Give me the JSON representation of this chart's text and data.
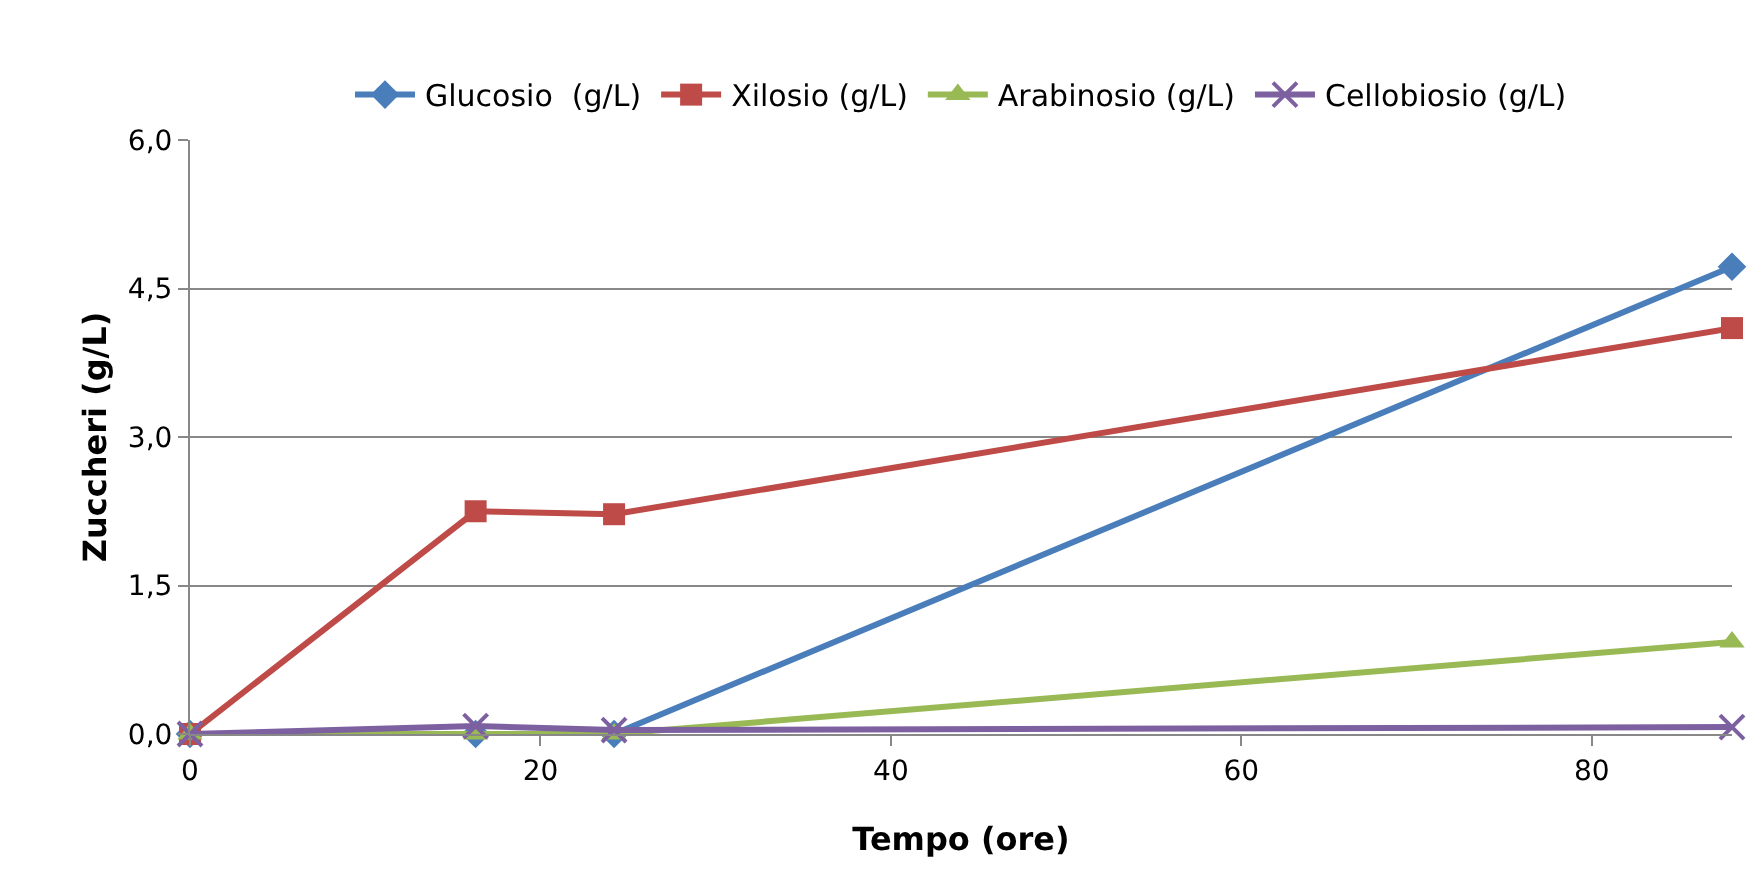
{
  "chart_data": {
    "type": "line",
    "xlabel": "Tempo (ore)",
    "ylabel": "Zuccheri (g/L)",
    "x": [
      0,
      16.3,
      24.2,
      88
    ],
    "series": [
      {
        "name": "Glucosio  (g/L)",
        "color": "#4a7ebb",
        "marker": "diamond",
        "values": [
          0,
          0,
          0,
          4.72
        ]
      },
      {
        "name": "Xilosio (g/L)",
        "color": "#be4b48",
        "marker": "square",
        "values": [
          0,
          2.25,
          2.22,
          4.1
        ]
      },
      {
        "name": "Arabinosio (g/L)",
        "color": "#98b954",
        "marker": "triangle",
        "values": [
          0,
          0,
          0,
          0.93
        ]
      },
      {
        "name": "Cellobiosio (g/L)",
        "color": "#7d60a0",
        "marker": "cross",
        "values": [
          0,
          0.08,
          0.04,
          0.07
        ]
      }
    ],
    "xlim": [
      0,
      88
    ],
    "xticks": [
      0,
      20,
      40,
      60,
      80
    ],
    "ylim": [
      0,
      6
    ],
    "yticks": [
      {
        "value": 0,
        "label": "0,0"
      },
      {
        "value": 1.5,
        "label": "1,5"
      },
      {
        "value": 3,
        "label": "3,0"
      },
      {
        "value": 4.5,
        "label": "4,5"
      },
      {
        "value": 6,
        "label": "6,0"
      }
    ],
    "grid": "y",
    "legend": "top",
    "line_style": "solid"
  }
}
